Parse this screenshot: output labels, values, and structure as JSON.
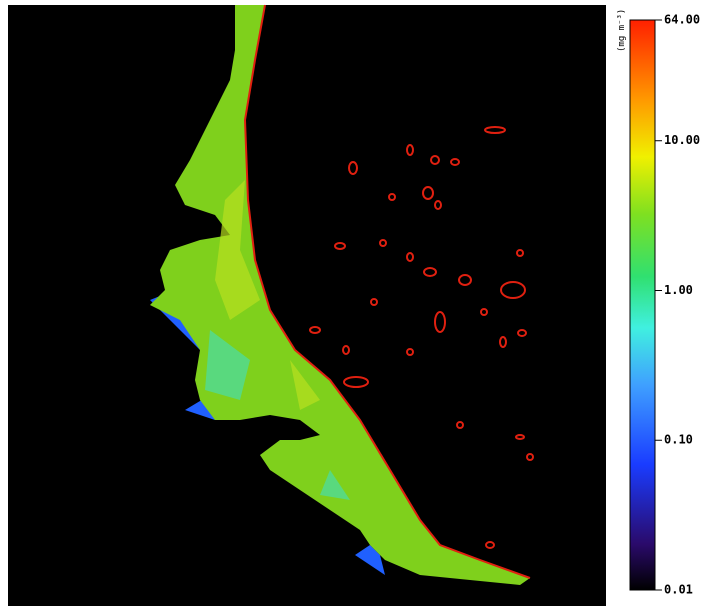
{
  "colorbar": {
    "label": "(mg m⁻³)",
    "scale": "log",
    "lim": [
      0.01,
      64
    ],
    "ticks": [
      {
        "value": 64,
        "label": "64.00"
      },
      {
        "value": 10,
        "label": "10.00"
      },
      {
        "value": 1,
        "label": "1.00"
      },
      {
        "value": 0.1,
        "label": "0.10"
      },
      {
        "value": 0.01,
        "label": "0.01"
      }
    ]
  }
}
